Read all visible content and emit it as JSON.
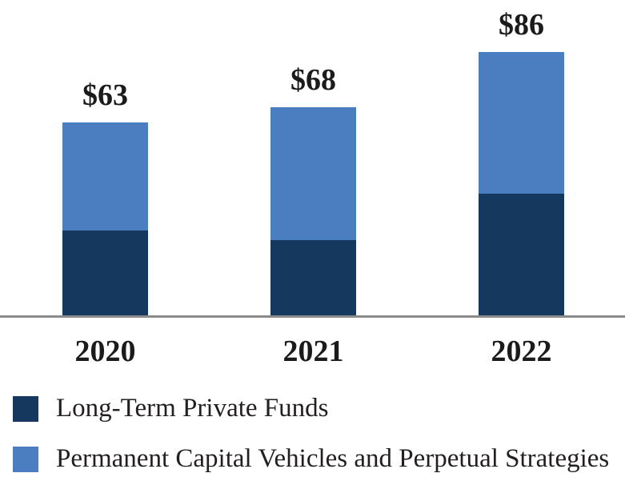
{
  "chart_data": {
    "type": "bar",
    "stacked": true,
    "title": "",
    "xlabel": "",
    "ylabel": "",
    "unit_prefix": "$",
    "categories": [
      "2020",
      "2021",
      "2022"
    ],
    "series": [
      {
        "name": "Long-Term Private Funds",
        "color": "#15395e",
        "values": [
          28,
          25,
          40
        ]
      },
      {
        "name": "Permanent Capital Vehicles and Perpetual Strategies",
        "color": "#4a7ec0",
        "values": [
          35,
          43,
          46
        ]
      }
    ],
    "totals": [
      63,
      68,
      86
    ],
    "total_labels": [
      "$63",
      "$68",
      "$86"
    ],
    "ylim": [
      0,
      90
    ],
    "grid": false,
    "legend_position": "bottom-left",
    "axis_line_color": "#8b8b8b",
    "label_color": "#1b1b1b"
  }
}
